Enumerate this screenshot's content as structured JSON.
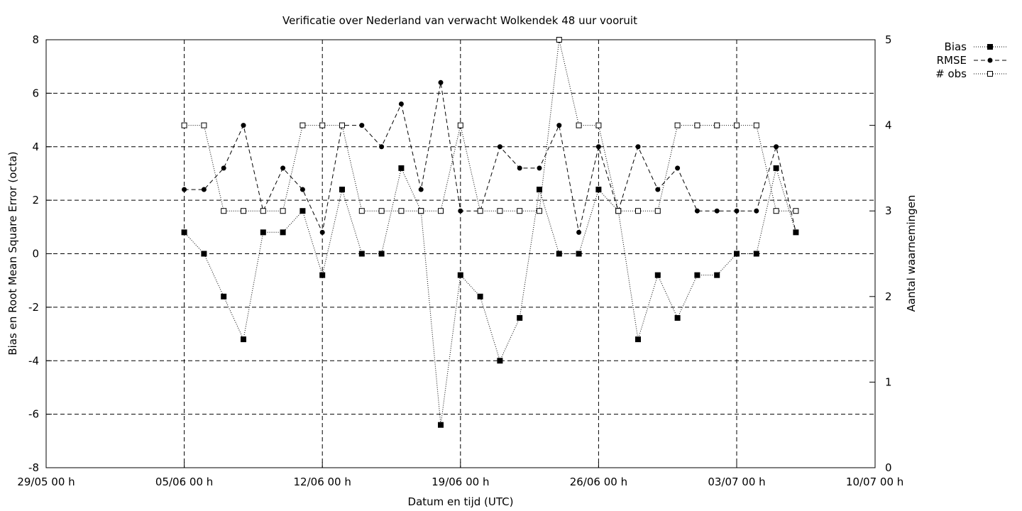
{
  "chart_data": {
    "type": "line",
    "title": "Verificatie over Nederland van verwacht Wolkendek 48 uur vooruit",
    "xlabel": "Datum en tijd (UTC)",
    "ylabel": "Bias en Root Mean Square Error (octa)",
    "y2label": "Aantal waarnemingen",
    "xlim": [
      0,
      41
    ],
    "ylim": [
      -8,
      8
    ],
    "y2lim": [
      0,
      5
    ],
    "grid": true,
    "legend_position": "top-right outside",
    "x_ticks": [
      {
        "day": 0,
        "label": "29/05 00 h"
      },
      {
        "day": 7,
        "label": "05/06 00 h"
      },
      {
        "day": 14,
        "label": "12/06 00 h"
      },
      {
        "day": 21,
        "label": "19/06 00 h"
      },
      {
        "day": 28,
        "label": "26/06 00 h"
      },
      {
        "day": 35,
        "label": "03/07 00 h"
      },
      {
        "day": 42,
        "label": "10/07 00 h"
      }
    ],
    "y_ticks": [
      "-8",
      "-6",
      "-4",
      "-2",
      "0",
      "2",
      "4",
      "6",
      "8"
    ],
    "y2_ticks": [
      "0",
      "1",
      "2",
      "3",
      "4",
      "5"
    ],
    "x_days": [
      7,
      8,
      9,
      10,
      11,
      12,
      13,
      14,
      15,
      16,
      17,
      18,
      19,
      20,
      21,
      22,
      23,
      24,
      25,
      26,
      27,
      28,
      29,
      30,
      31,
      32,
      33,
      34,
      35,
      36,
      37,
      38
    ],
    "series": [
      {
        "name": "Bias",
        "axis": "left",
        "marker": "filled-square",
        "line": "dotted",
        "values": [
          0.8,
          0,
          -1.6,
          -3.2,
          0.8,
          0.8,
          1.6,
          -0.8,
          2.4,
          0,
          0,
          3.2,
          1.6,
          -6.4,
          -0.8,
          -1.6,
          -4,
          -2.4,
          2.4,
          0,
          0,
          2.4,
          1.6,
          -3.2,
          -0.8,
          -2.4,
          -0.8,
          -0.8,
          0,
          0,
          3.2,
          0.8
        ]
      },
      {
        "name": "RMSE",
        "axis": "left",
        "marker": "filled-circle",
        "line": "dashed",
        "values": [
          2.4,
          2.4,
          3.2,
          4.8,
          1.6,
          3.2,
          2.4,
          0.8,
          4.8,
          4.8,
          4,
          5.6,
          2.4,
          6.4,
          1.6,
          1.6,
          4,
          3.2,
          3.2,
          4.8,
          0.8,
          4,
          1.6,
          4,
          2.4,
          3.2,
          1.6,
          1.6,
          1.6,
          1.6,
          4,
          0.8
        ]
      },
      {
        "name": "# obs",
        "axis": "right",
        "marker": "open-square",
        "line": "dotted",
        "values": [
          4,
          4,
          3,
          3,
          3,
          3,
          4,
          4,
          4,
          3,
          3,
          3,
          3,
          3,
          4,
          3,
          3,
          3,
          3,
          5,
          4,
          4,
          3,
          3,
          3,
          4,
          4,
          4,
          4,
          4,
          3,
          3
        ]
      }
    ]
  }
}
